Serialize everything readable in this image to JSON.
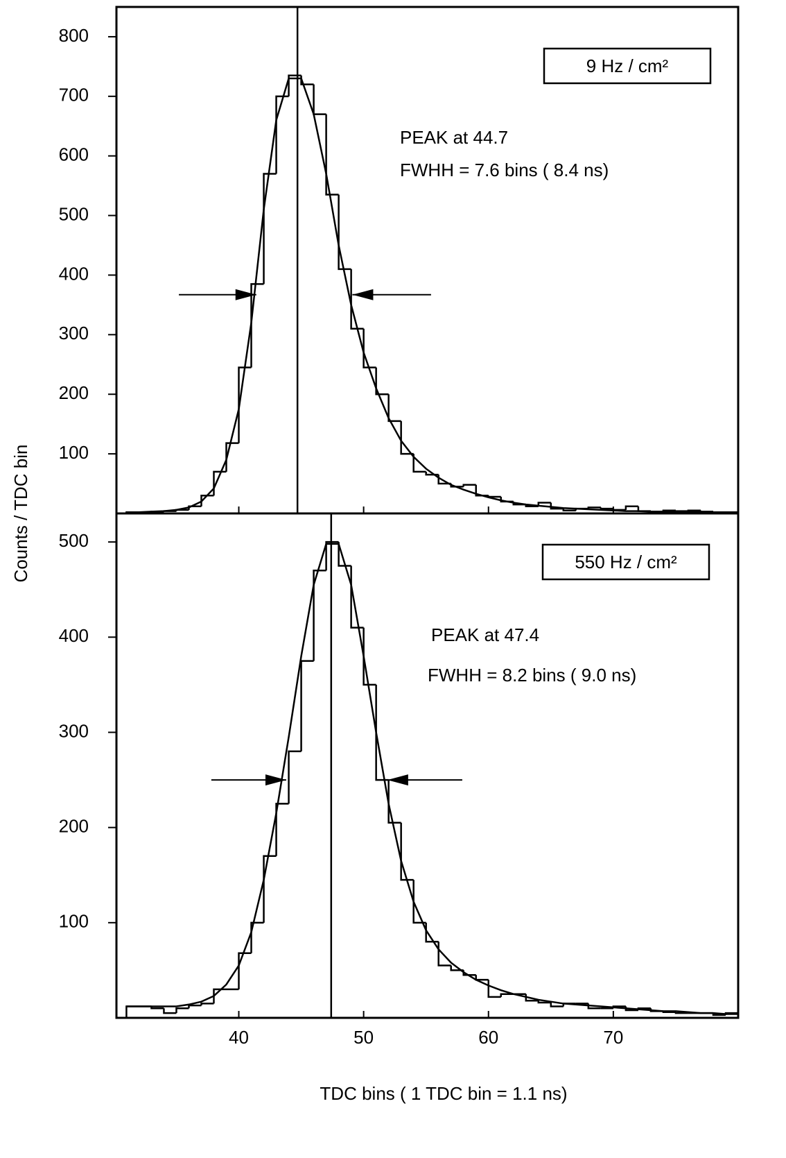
{
  "chart_data": [
    {
      "type": "histogram",
      "ylabel": "Counts / TDC bin",
      "rate": "9 Hz / cm²",
      "annotations": [
        "PEAK at 44.7",
        "FWHH = 7.6 bins ( 8.4 ns)"
      ],
      "peak": 44.7,
      "fwhh_arrows": {
        "y": 367,
        "left": [
          35.2,
          41.4
        ],
        "right": [
          49.1,
          55.4
        ]
      },
      "bins": [
        31,
        32,
        33,
        34,
        35,
        36,
        37,
        38,
        39,
        40,
        41,
        42,
        43,
        44,
        45,
        46,
        47,
        48,
        49,
        50,
        51,
        52,
        53,
        54,
        55,
        56,
        57,
        58,
        59,
        60,
        61,
        62,
        63,
        64,
        65,
        66,
        67,
        68,
        69,
        70,
        71,
        72,
        73,
        74,
        75,
        76,
        77,
        78,
        79,
        80
      ],
      "counts": [
        2,
        2,
        3,
        4,
        6,
        12,
        30,
        70,
        118,
        245,
        385,
        570,
        700,
        735,
        720,
        670,
        535,
        410,
        310,
        245,
        200,
        155,
        100,
        70,
        65,
        50,
        45,
        48,
        30,
        28,
        20,
        15,
        12,
        18,
        8,
        5,
        8,
        10,
        8,
        6,
        12,
        4,
        3,
        5,
        4,
        5,
        3,
        2,
        2
      ],
      "fit": {
        "x": [
          31,
          32,
          33,
          34,
          35,
          36,
          37,
          38,
          39,
          40,
          41,
          42,
          43,
          44,
          45,
          46,
          47,
          48,
          49,
          50,
          51,
          52,
          53,
          54,
          55,
          56,
          57,
          58,
          59,
          60,
          61,
          62,
          63,
          64,
          65,
          66,
          67,
          68,
          69,
          70,
          71,
          72,
          73,
          74,
          75,
          76,
          77,
          78,
          79,
          80
        ],
        "values": [
          2,
          2,
          3,
          4,
          6,
          10,
          20,
          42,
          90,
          175,
          320,
          510,
          660,
          730,
          730,
          670,
          570,
          450,
          350,
          270,
          210,
          160,
          122,
          95,
          75,
          60,
          48,
          40,
          33,
          27,
          22,
          18,
          15,
          13,
          11,
          9,
          8,
          7,
          6,
          5,
          4,
          4,
          3,
          3,
          2,
          2,
          2,
          2,
          1,
          1
        ]
      },
      "xlim": [
        30.2,
        80
      ],
      "ylim": [
        0,
        850
      ],
      "yticks": [
        100,
        200,
        300,
        400,
        500,
        600,
        700,
        800
      ],
      "color": "#000000"
    },
    {
      "type": "histogram",
      "xlabel": "TDC bins ( 1 TDC bin = 1.1 ns)",
      "rate": "550 Hz / cm²",
      "annotations": [
        "PEAK at 47.4",
        "FWHH = 8.2 bins ( 9.0 ns)"
      ],
      "peak": 47.4,
      "fwhh_arrows": {
        "y": 250,
        "left": [
          37.8,
          43.8
        ],
        "right": [
          51.9,
          57.9
        ]
      },
      "bins": [
        31,
        32,
        33,
        34,
        35,
        36,
        37,
        38,
        39,
        40,
        41,
        42,
        43,
        44,
        45,
        46,
        47,
        48,
        49,
        50,
        51,
        52,
        53,
        54,
        55,
        56,
        57,
        58,
        59,
        60,
        61,
        62,
        63,
        64,
        65,
        66,
        67,
        68,
        69,
        70,
        71,
        72,
        73,
        74,
        75,
        76,
        77,
        78,
        79,
        80
      ],
      "counts": [
        12,
        12,
        10,
        5,
        10,
        13,
        15,
        30,
        30,
        68,
        100,
        170,
        225,
        280,
        375,
        470,
        500,
        475,
        410,
        350,
        250,
        205,
        145,
        100,
        80,
        55,
        50,
        45,
        40,
        22,
        25,
        25,
        18,
        16,
        12,
        15,
        15,
        10,
        10,
        12,
        8,
        10,
        7,
        6,
        5,
        5,
        5,
        3,
        5
      ],
      "fit": {
        "x": [
          31,
          32,
          33,
          34,
          35,
          36,
          37,
          38,
          39,
          40,
          41,
          42,
          43,
          44,
          45,
          46,
          47,
          48,
          49,
          50,
          51,
          52,
          53,
          54,
          55,
          56,
          57,
          58,
          59,
          60,
          61,
          62,
          63,
          64,
          65,
          66,
          67,
          68,
          69,
          70,
          71,
          72,
          73,
          74,
          75,
          76,
          77,
          78,
          79,
          80
        ],
        "values": [
          12,
          12,
          12,
          12,
          12,
          14,
          17,
          23,
          35,
          55,
          90,
          145,
          215,
          295,
          380,
          455,
          498,
          498,
          455,
          380,
          300,
          225,
          165,
          122,
          92,
          72,
          58,
          48,
          40,
          34,
          29,
          25,
          22,
          19,
          17,
          15,
          14,
          13,
          12,
          11,
          10,
          9,
          8,
          7,
          7,
          6,
          5,
          5,
          4,
          4
        ]
      },
      "xlim": [
        30.2,
        80
      ],
      "ylim": [
        0,
        530
      ],
      "xticks": [
        40,
        50,
        60,
        70
      ],
      "yticks": [
        100,
        200,
        300,
        400,
        500
      ],
      "color": "#000000"
    }
  ]
}
